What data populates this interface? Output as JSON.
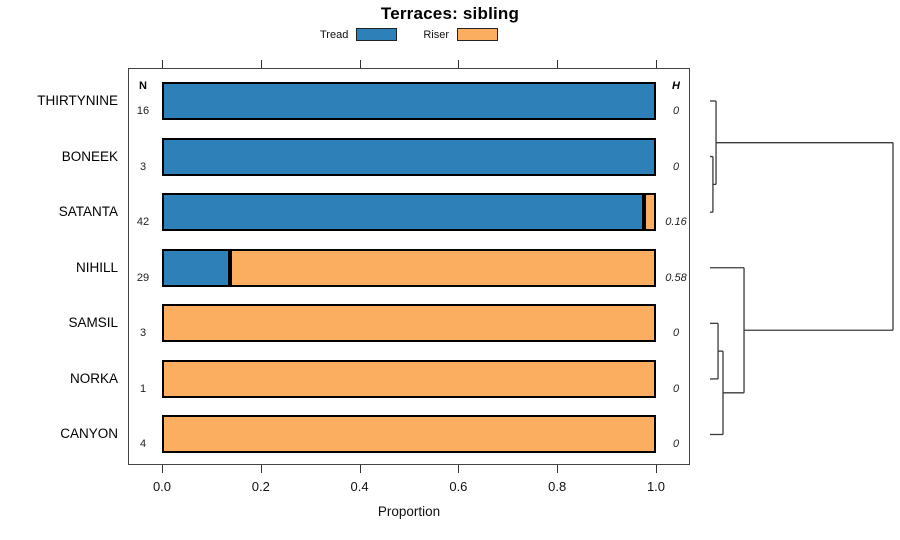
{
  "title": "Terraces: sibling",
  "legend": {
    "items": [
      {
        "label": "Tread",
        "color": "#2E80B9"
      },
      {
        "label": "Riser",
        "color": "#FBAD60"
      }
    ]
  },
  "table": {
    "n_header": "N",
    "h_header": "H",
    "n_values": [
      "16",
      "3",
      "42",
      "29",
      "3",
      "1",
      "4"
    ],
    "h_values": [
      "0",
      "0",
      "0.16",
      "0.58",
      "0",
      "0",
      "0"
    ]
  },
  "x_axis": {
    "label": "Proportion",
    "tick_labels": [
      "0.0",
      "0.2",
      "0.4",
      "0.6",
      "0.8",
      "1.0"
    ],
    "tick_values": [
      0,
      0.2,
      0.4,
      0.6,
      0.8,
      1.0
    ],
    "range": [
      0,
      1
    ]
  },
  "chart_data": {
    "type": "bar",
    "orientation": "horizontal",
    "stacked": true,
    "title": "Terraces: sibling",
    "xlabel": "Proportion",
    "xlim": [
      0,
      1
    ],
    "grid": false,
    "legend_position": "top",
    "categories": [
      "THIRTYNINE",
      "BONEEK",
      "SATANTA",
      "NIHILL",
      "SAMSIL",
      "NORKA",
      "CANYON"
    ],
    "series": [
      {
        "name": "Tread",
        "color": "#2E80B9",
        "values": [
          1,
          1,
          0.976,
          0.138,
          0,
          0,
          0
        ]
      },
      {
        "name": "Riser",
        "color": "#FBAD60",
        "values": [
          0,
          0,
          0.024,
          0.862,
          1,
          1,
          1
        ]
      }
    ],
    "row_counts": [
      16,
      3,
      42,
      29,
      3,
      1,
      4
    ],
    "row_entropy": [
      0,
      0,
      0.16,
      0.58,
      0,
      0,
      0
    ]
  },
  "dendrogram": {
    "tree": {
      "h": 1.0,
      "children": [
        {
          "h": 0.033,
          "children": [
            {
              "leaf": "THIRTYNINE"
            },
            {
              "h": 0.016,
              "children": [
                {
                  "leaf": "BONEEK"
                },
                {
                  "leaf": "SATANTA"
                }
              ]
            }
          ]
        },
        {
          "h": 0.186,
          "children": [
            {
              "leaf": "NIHILL"
            },
            {
              "h": 0.071,
              "children": [
                {
                  "h": 0.044,
                  "children": [
                    {
                      "leaf": "SAMSIL"
                    },
                    {
                      "leaf": "NORKA"
                    }
                  ]
                },
                {
                  "leaf": "CANYON"
                }
              ]
            }
          ]
        }
      ]
    }
  },
  "colors": {
    "tread": "#2E80B9",
    "riser": "#FBAD60",
    "line": "#3A3A3A",
    "background": "#FFFFFF"
  }
}
